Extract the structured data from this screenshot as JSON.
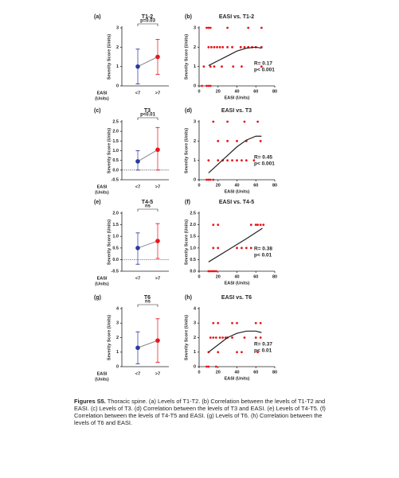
{
  "chart_data": [
    {
      "type": "errorbar",
      "panel": "(a)",
      "title": "T1-2",
      "ylabel": "Severity Score (Units)",
      "xlabel": [
        "EASI",
        "(Units)"
      ],
      "categories": [
        "<7",
        ">7"
      ],
      "colors": [
        "#2b3a9c",
        "#e8141b"
      ],
      "values": [
        1.0,
        1.5
      ],
      "lower": [
        0.1,
        0.6
      ],
      "upper": [
        1.9,
        2.4
      ],
      "ylim": [
        0,
        3
      ],
      "yticks": [
        0,
        1,
        2,
        3
      ],
      "annotation": "p=0.03"
    },
    {
      "type": "scatter",
      "panel": "(b)",
      "title": "EASI vs. T1-2",
      "ylabel": "Severity Score (Units)",
      "xlabel": "EASI (Units)",
      "xlim": [
        0,
        80
      ],
      "xticks": [
        0,
        20,
        40,
        60,
        80
      ],
      "ylim": [
        0,
        3
      ],
      "yticks": [
        0,
        1,
        2,
        3
      ],
      "annotations": [
        "R= 0.17",
        "p< 0.001"
      ],
      "series": [
        {
          "color": "#e8141b",
          "x": [
            8,
            10,
            12,
            30,
            52,
            66,
            10,
            13,
            16,
            19,
            22,
            25,
            30,
            35,
            44,
            48,
            52,
            56,
            60,
            66,
            5,
            12,
            16,
            24,
            36,
            45,
            66,
            3,
            8,
            10,
            12
          ],
          "values": [
            3,
            3,
            3,
            3,
            3,
            3,
            2,
            2,
            2,
            2,
            2,
            2,
            2,
            2,
            2,
            2,
            2,
            2,
            2,
            2,
            1,
            1,
            1,
            1,
            1,
            1,
            1,
            0,
            0,
            0,
            0
          ]
        }
      ],
      "fit": {
        "color": "#222222",
        "x": [
          10,
          20,
          30,
          40,
          50,
          60,
          66
        ],
        "values": [
          1.05,
          1.3,
          1.55,
          1.8,
          1.95,
          2.0,
          1.95
        ]
      }
    },
    {
      "type": "errorbar",
      "panel": "(c)",
      "title": "T3",
      "ylabel": "Severity Score (Units)",
      "xlabel": [
        "EASI",
        "(Units)"
      ],
      "categories": [
        "<7",
        ">7"
      ],
      "colors": [
        "#2b3a9c",
        "#e8141b"
      ],
      "values": [
        0.45,
        1.05
      ],
      "lower": [
        0,
        0
      ],
      "upper": [
        1.0,
        2.2
      ],
      "ylim": [
        -0.5,
        2.5
      ],
      "yticks": [
        -0.5,
        {
          "value": 0,
          "label": "0.0"
        },
        0.5,
        {
          "value": 1,
          "label": "1.0"
        },
        1.5,
        {
          "value": 2,
          "label": "2.0"
        },
        2.5
      ],
      "ref_line": 0,
      "annotation": "p<0.01"
    },
    {
      "type": "scatter",
      "panel": "(d)",
      "title": "EASI vs. T3",
      "ylabel": "Severity Score (Units)",
      "xlabel": "EASI (Units)",
      "xlim": [
        0,
        80
      ],
      "xticks": [
        0,
        20,
        40,
        60,
        80
      ],
      "ylim": [
        0,
        3
      ],
      "yticks": [
        0,
        1,
        2,
        3
      ],
      "annotations": [
        "R= 0.45",
        "p< 0.001"
      ],
      "series": [
        {
          "color": "#e8141b",
          "x": [
            15,
            30,
            48,
            62,
            20,
            30,
            40,
            50,
            65,
            10,
            20,
            25,
            30,
            35,
            40,
            45,
            50,
            58,
            8,
            10,
            12,
            15
          ],
          "values": [
            3,
            3,
            3,
            3,
            2,
            2,
            2,
            2,
            2,
            1,
            1,
            1,
            1,
            1,
            1,
            1,
            1,
            1,
            0,
            0,
            0,
            0
          ]
        }
      ],
      "fit": {
        "color": "#222222",
        "x": [
          10,
          20,
          30,
          40,
          50,
          60,
          66
        ],
        "values": [
          0.35,
          0.8,
          1.25,
          1.7,
          2.05,
          2.25,
          2.25
        ]
      }
    },
    {
      "type": "errorbar",
      "panel": "(e)",
      "title": "T4-5",
      "ylabel": "Severity Score (Units)",
      "xlabel": [
        "EASI",
        "(Units)"
      ],
      "categories": [
        "<7",
        ">7"
      ],
      "colors": [
        "#2b3a9c",
        "#e8141b"
      ],
      "values": [
        0.5,
        0.8
      ],
      "lower": [
        -0.2,
        0.05
      ],
      "upper": [
        1.15,
        1.55
      ],
      "ylim": [
        -0.5,
        2
      ],
      "yticks": [
        -0.5,
        {
          "value": 0,
          "label": "0.0"
        },
        0.5,
        {
          "value": 1,
          "label": "1.0"
        },
        1.5,
        {
          "value": 2,
          "label": "2.0"
        }
      ],
      "ref_line": 0,
      "annotation": "ns"
    },
    {
      "type": "scatter",
      "panel": "(f)",
      "title": "EASI vs. T4-5",
      "ylabel": "Severity Score (Units)",
      "xlabel": "EASI (Units)",
      "xlim": [
        0,
        80
      ],
      "xticks": [
        0,
        20,
        40,
        60,
        80
      ],
      "ylim": [
        0,
        2.5
      ],
      "yticks": [
        {
          "value": 0,
          "label": "0.0"
        },
        0.5,
        {
          "value": 1,
          "label": "1.0"
        },
        1.5,
        {
          "value": 2,
          "label": "2.0"
        },
        2.5
      ],
      "annotations": [
        "R= 0.38",
        "p< 0.01"
      ],
      "series": [
        {
          "color": "#e8141b",
          "x": [
            15,
            20,
            55,
            60,
            62,
            65,
            68,
            15,
            20,
            40,
            45,
            50,
            55,
            10,
            12,
            14,
            16,
            18
          ],
          "values": [
            2,
            2,
            2,
            2,
            2,
            2,
            2,
            1,
            1,
            1,
            1,
            1,
            1,
            0,
            0,
            0,
            0,
            0
          ]
        }
      ],
      "fit": {
        "color": "#222222",
        "x": [
          10,
          30,
          50,
          67
        ],
        "values": [
          0.4,
          0.9,
          1.4,
          1.85
        ]
      }
    },
    {
      "type": "errorbar",
      "panel": "(g)",
      "title": "T6",
      "ylabel": "Severity Score (Units)",
      "xlabel": [
        "EASI",
        "(Units)"
      ],
      "categories": [
        "<7",
        ">7"
      ],
      "colors": [
        "#2b3a9c",
        "#e8141b"
      ],
      "values": [
        1.3,
        1.8
      ],
      "lower": [
        0.2,
        0.3
      ],
      "upper": [
        2.4,
        3.3
      ],
      "ylim": [
        0,
        4
      ],
      "yticks": [
        0,
        1,
        2,
        3,
        4
      ],
      "annotation": "ns"
    },
    {
      "type": "scatter",
      "panel": "(h)",
      "title": "EASI vs. T6",
      "ylabel": "Severity Score (Units)",
      "xlabel": "EASI (Units)",
      "xlim": [
        0,
        80
      ],
      "xticks": [
        0,
        20,
        40,
        60,
        80
      ],
      "ylim": [
        0,
        4
      ],
      "yticks": [
        0,
        1,
        2,
        3,
        4
      ],
      "annotations": [
        "R= 0.37",
        "p< 0.01"
      ],
      "series": [
        {
          "color": "#e8141b",
          "x": [
            15,
            20,
            35,
            40,
            60,
            65,
            12,
            15,
            18,
            22,
            25,
            28,
            30,
            35,
            48,
            60,
            65,
            10,
            20,
            40,
            45,
            62,
            8,
            10,
            18
          ],
          "values": [
            3,
            3,
            3,
            3,
            3,
            3,
            2,
            2,
            2,
            2,
            2,
            2,
            2,
            2,
            2,
            2,
            2,
            1,
            1,
            1,
            1,
            1,
            0,
            0,
            0
          ]
        }
      ],
      "fit": {
        "color": "#222222",
        "x": [
          10,
          20,
          30,
          40,
          50,
          60,
          66
        ],
        "values": [
          1.0,
          1.5,
          2.0,
          2.3,
          2.45,
          2.45,
          2.35
        ]
      }
    }
  ],
  "caption": {
    "label": "Figures S5.",
    "text": "Thoracic spine. (a) Levels of T1-T2. (b) Correlation between the levels of T1-T2 and EASI. (c) Levels of T3. (d) Correlation between the levels of T3 and EASI. (e) Levels of T4-T5. (f) Correlation between the levels of T4-T5 and EASI. (g) Levels of T6. (h) Correlation between the levels of T6 and EASI."
  }
}
